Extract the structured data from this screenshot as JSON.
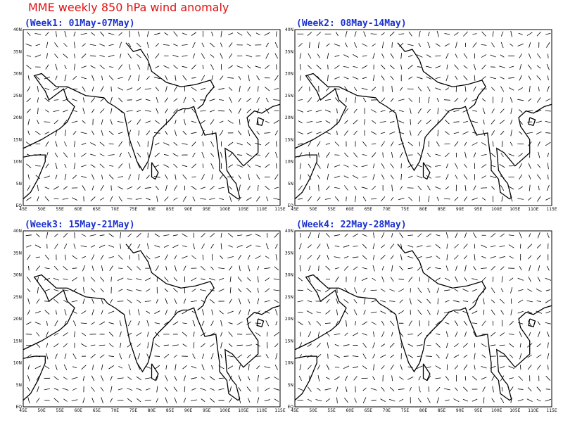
{
  "title": "MME weekly 850 hPa wind anomaly",
  "panels": [
    {
      "title": "(Week1: 01May-07May)"
    },
    {
      "title": "(Week2: 08May-14May)"
    },
    {
      "title": "(Week3: 15May-21May)"
    },
    {
      "title": "(Week4: 22May-28May)"
    }
  ],
  "x_tick_labels": [
    "45E",
    "50E",
    "55E",
    "60E",
    "65E",
    "70E",
    "75E",
    "80E",
    "85E",
    "90E",
    "95E",
    "100E",
    "105E",
    "110E",
    "115E"
  ],
  "y_tick_labels": [
    "EQ",
    "5N",
    "10N",
    "15N",
    "20N",
    "25N",
    "30N",
    "35N",
    "40N"
  ]
}
